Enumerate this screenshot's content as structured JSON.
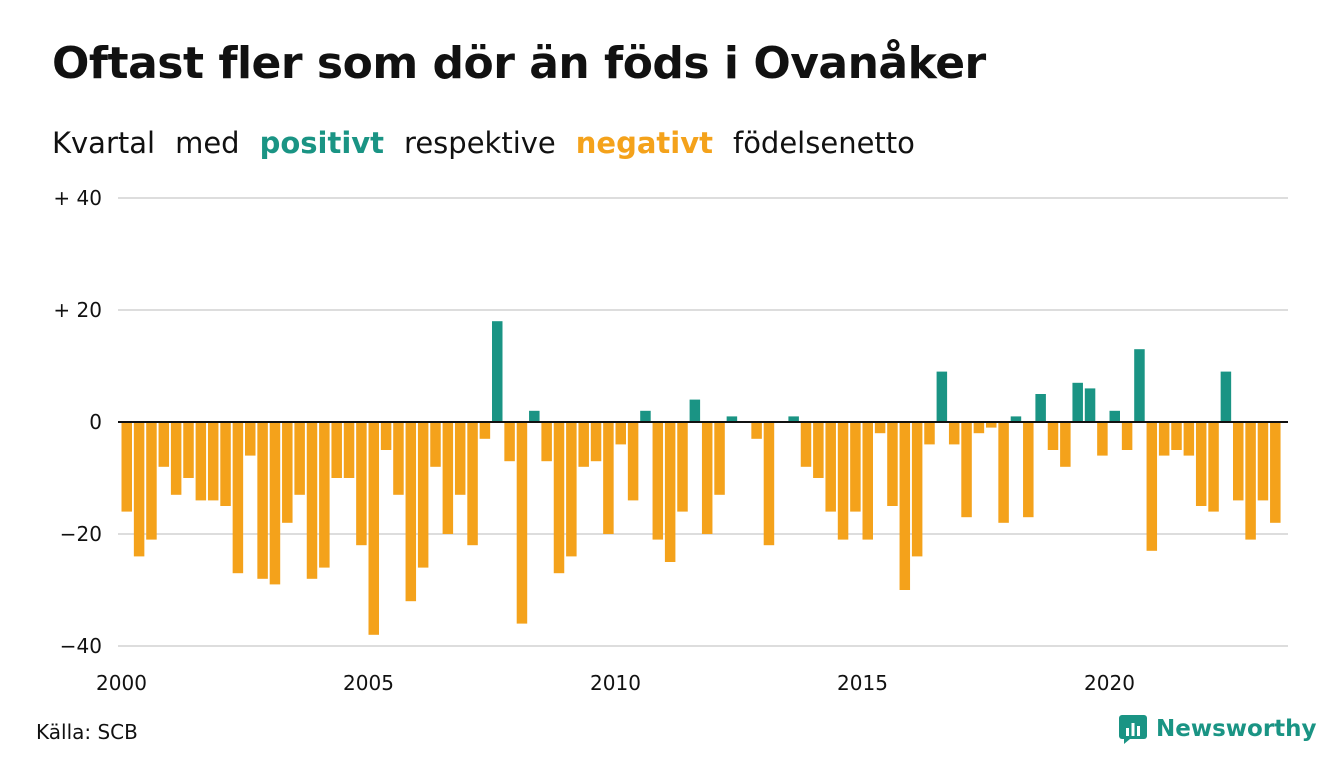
{
  "header": {
    "title": "Oftast fler som dör än föds i Ovanåker",
    "subtitle_parts": [
      "Kvartal",
      "med",
      "positivt",
      "respektive",
      "negativt",
      "födelsenetto"
    ]
  },
  "footer": {
    "source": "Källa: SCB",
    "brand": "Newsworthy",
    "brand_icon": "newsworthy-logo-icon"
  },
  "colors": {
    "positive": "#1a9484",
    "negative": "#f4a21b",
    "grid": "#dddddd",
    "zero_line": "#111111",
    "text": "#111111"
  },
  "chart_data": {
    "type": "bar",
    "title": "Oftast fler som dör än föds i Ovanåker",
    "subtitle": "Kvartal med positivt respektive negativt födelsenetto",
    "xlabel": "",
    "ylabel": "",
    "x_ticks": [
      "2000",
      "2005",
      "2010",
      "2015",
      "2020"
    ],
    "y_ticks": [
      {
        "value": 40,
        "label": "+ 40"
      },
      {
        "value": 20,
        "label": "+ 20"
      },
      {
        "value": 0,
        "label": "0"
      },
      {
        "value": -20,
        "label": "−20"
      },
      {
        "value": -40,
        "label": "−40"
      }
    ],
    "ylim": [
      -40,
      40
    ],
    "x_start_year": 2000,
    "quarters_per_year": 4,
    "grid": true,
    "values": [
      -16,
      -24,
      -21,
      -8,
      -13,
      -10,
      -14,
      -14,
      -15,
      -27,
      -6,
      -28,
      -29,
      -18,
      -13,
      -28,
      -26,
      -10,
      -10,
      -22,
      -38,
      -5,
      -13,
      -32,
      -26,
      -8,
      -20,
      -13,
      -22,
      -3,
      18,
      -7,
      -36,
      2,
      -7,
      -27,
      -24,
      -8,
      -7,
      -20,
      -4,
      -14,
      2,
      -21,
      -25,
      -16,
      4,
      -20,
      -13,
      1,
      0,
      -3,
      -22,
      0,
      1,
      -8,
      -10,
      -16,
      -21,
      -16,
      -21,
      -2,
      -15,
      -30,
      -24,
      -4,
      9,
      -4,
      -17,
      -2,
      -1,
      -18,
      1,
      -17,
      5,
      -5,
      -8,
      7,
      6,
      -6,
      2,
      -5,
      13,
      -23,
      -6,
      -5,
      -6,
      -15,
      -16,
      9,
      -14,
      -21,
      -14,
      -18
    ]
  }
}
